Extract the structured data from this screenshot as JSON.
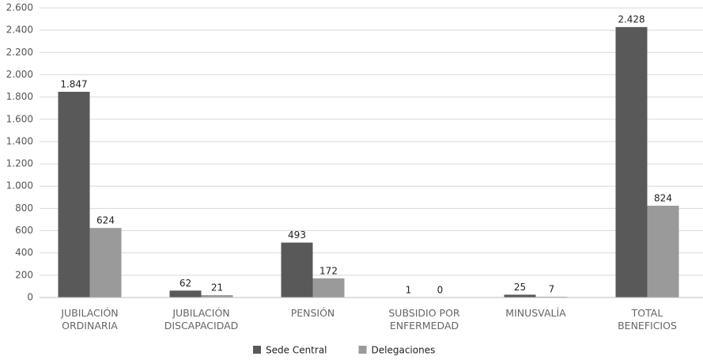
{
  "chart_data": {
    "type": "bar",
    "categories": [
      "JUBILACIÓN ORDINARIA",
      "JUBILACIÓN DISCAPACIDAD",
      "PENSIÓN",
      "SUBSIDIO POR ENFERMEDAD",
      "MINUSVALÍA",
      "TOTAL BENEFICIOS"
    ],
    "series": [
      {
        "name": "Sede Central",
        "color": "#595959",
        "values": [
          1847,
          62,
          493,
          1,
          25,
          2428
        ],
        "value_labels": [
          "1.847",
          "62",
          "493",
          "1",
          "25",
          "2.428"
        ]
      },
      {
        "name": "Delegaciones",
        "color": "#9a9a9a",
        "values": [
          624,
          21,
          172,
          0,
          7,
          824
        ],
        "value_labels": [
          "624",
          "21",
          "172",
          "0",
          "7",
          "824"
        ]
      }
    ],
    "ylim": [
      0,
      2600
    ],
    "yticks": [
      0,
      200,
      400,
      600,
      800,
      {
        "value": 1000,
        "label": "1.000"
      },
      {
        "value": 1200,
        "label": "1.200"
      },
      {
        "value": 1400,
        "label": "1.400"
      },
      {
        "value": 1600,
        "label": "1.600"
      },
      {
        "value": 1800,
        "label": "1.800"
      },
      {
        "value": 2000,
        "label": "2.000"
      },
      {
        "value": 2200,
        "label": "2.200"
      },
      {
        "value": 2400,
        "label": "2.400"
      },
      {
        "value": 2600,
        "label": "2.600"
      }
    ],
    "grid": true,
    "legend": "bottom"
  }
}
